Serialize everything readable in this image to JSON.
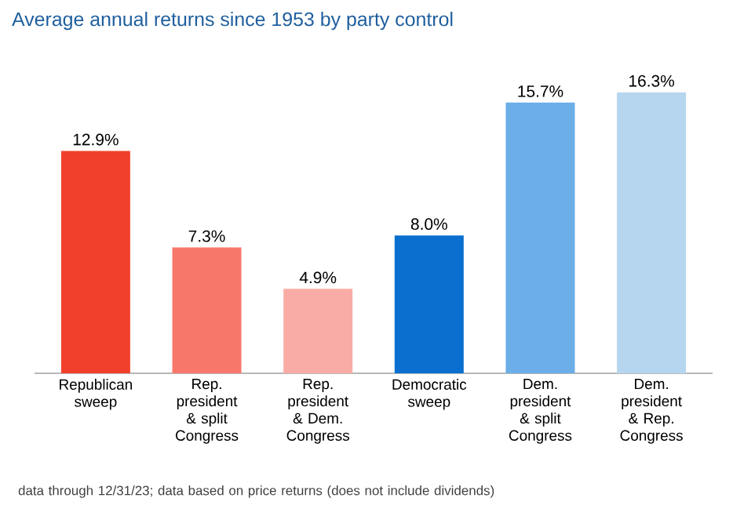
{
  "chart_data": {
    "type": "bar",
    "title": "Average annual returns since 1953 by party control",
    "categories": [
      "Republican sweep",
      "Rep. president & split Congress",
      "Rep. president & Dem. Congress",
      "Democratic sweep",
      "Dem. president & split Congress",
      "Dem. president & Rep. Congress"
    ],
    "values": [
      12.9,
      7.3,
      4.9,
      8.0,
      15.7,
      16.3
    ],
    "value_labels": [
      "12.9%",
      "7.3%",
      "4.9%",
      "8.0%",
      "15.7%",
      "16.3%"
    ],
    "colors": [
      "#f0402b",
      "#f7786b",
      "#f9aca5",
      "#0a6fcf",
      "#6baee8",
      "#b6d6ef"
    ],
    "annotations": [
      "data through 12/31/23; data based on price returns (does not include dividends)"
    ]
  }
}
